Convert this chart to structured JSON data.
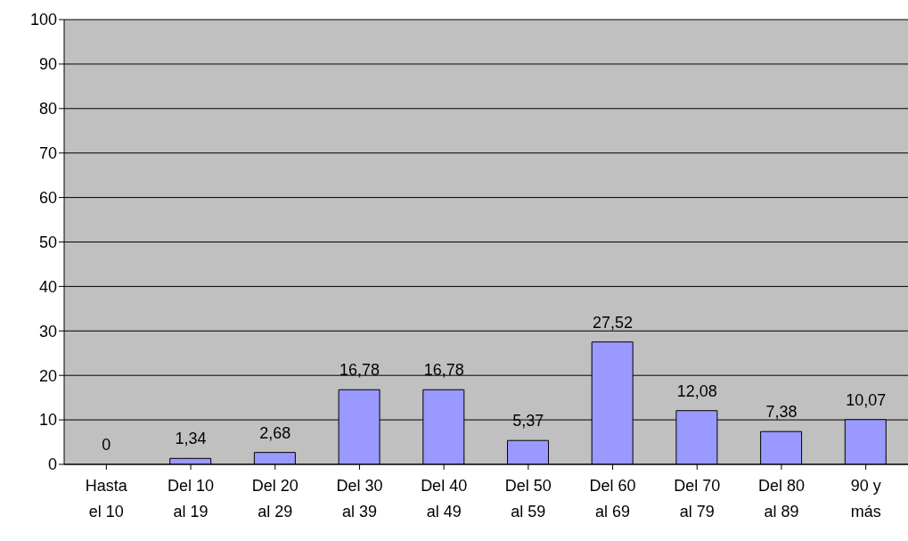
{
  "chart_data": {
    "type": "bar",
    "categories": [
      "Hasta el 10",
      "Del 10 al 19",
      "Del 20 al 29",
      "Del 30 al 39",
      "Del 40 al 49",
      "Del 50 al 59",
      "Del 60 al 69",
      "Del 70 al 79",
      "Del 80 al 89",
      "90 y más"
    ],
    "values": [
      0,
      1.34,
      2.68,
      16.78,
      16.78,
      5.37,
      27.52,
      12.08,
      7.38,
      10.07
    ],
    "value_labels": [
      "0",
      "1,34",
      "2,68",
      "16,78",
      "16,78",
      "5,37",
      "27,52",
      "12,08",
      "7,38",
      "10,07"
    ],
    "color": "#9999ff",
    "ylim": [
      0,
      100
    ],
    "yticks": [
      0,
      10,
      20,
      30,
      40,
      50,
      60,
      70,
      80,
      90,
      100
    ],
    "grid": "y"
  }
}
